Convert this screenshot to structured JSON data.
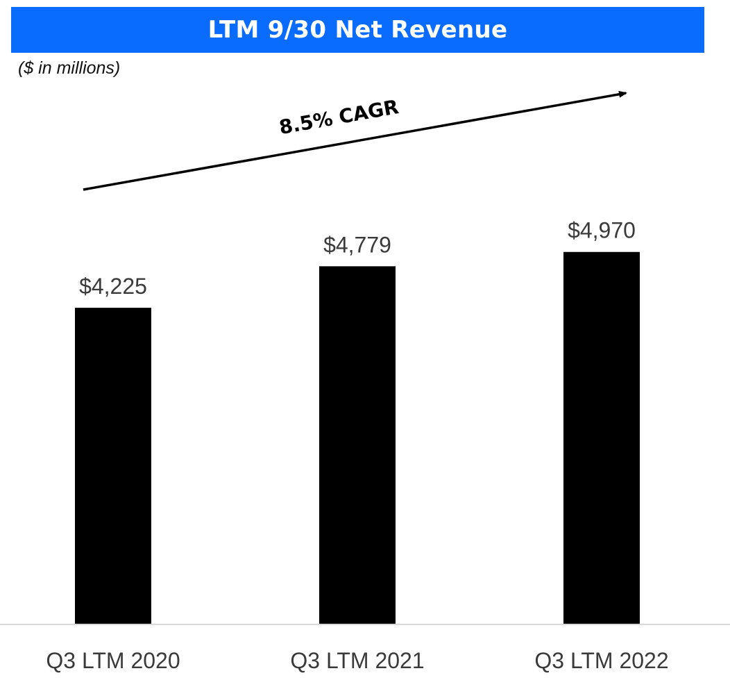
{
  "header": {
    "title": "LTM 9/30 Net Revenue",
    "units": "($ in millions)"
  },
  "annotation": {
    "cagr_text": "8.5% CAGR"
  },
  "colors": {
    "banner": "#0a6cff",
    "bar": "#000000",
    "axis": "#d9d9d9"
  },
  "chart_data": {
    "type": "bar",
    "title": "LTM 9/30 Net Revenue",
    "subtitle": "($ in millions)",
    "categories": [
      "Q3 LTM 2020",
      "Q3 LTM 2021",
      "Q3 LTM 2022"
    ],
    "values": [
      4225,
      4779,
      4970
    ],
    "value_labels": [
      "$4,225",
      "$4,779",
      "$4,970"
    ],
    "annotations": [
      "8.5% CAGR"
    ],
    "xlabel": "",
    "ylabel": "",
    "grid": false,
    "legend": "none"
  }
}
